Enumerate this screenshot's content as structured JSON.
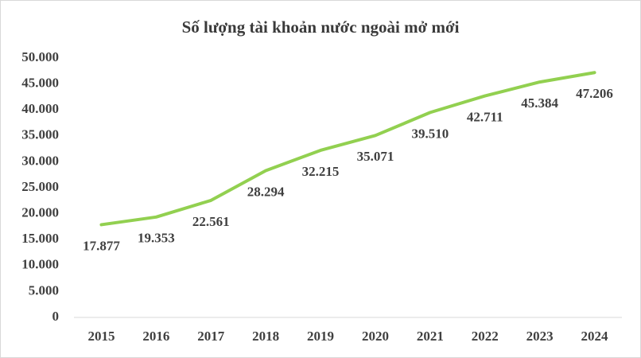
{
  "chart_data": {
    "type": "line",
    "title": "Số lượng tài khoản nước ngoài mở mới",
    "categories": [
      "2015",
      "2016",
      "2017",
      "2018",
      "2019",
      "2020",
      "2021",
      "2022",
      "2023",
      "2024"
    ],
    "series": [
      {
        "name": "Số lượng tài khoản nước ngoài mở mới",
        "color": "#92d050",
        "values": [
          17877,
          19353,
          22561,
          28294,
          32215,
          35071,
          39510,
          42711,
          45384,
          47206
        ],
        "value_labels": [
          "17.877",
          "19.353",
          "22.561",
          "28.294",
          "32.215",
          "35.071",
          "39.510",
          "42.711",
          "45.384",
          "47.206"
        ]
      }
    ],
    "ylim": [
      0,
      50000
    ],
    "yticks": [
      0,
      {
        "value": 5000,
        "label": "5.000"
      },
      {
        "value": 10000,
        "label": "10.000"
      },
      {
        "value": 15000,
        "label": "15.000"
      },
      {
        "value": 20000,
        "label": "20.000"
      },
      {
        "value": 25000,
        "label": "25.000"
      },
      {
        "value": 30000,
        "label": "30.000"
      },
      {
        "value": 35000,
        "label": "35.000"
      },
      {
        "value": 40000,
        "label": "40.000"
      },
      {
        "value": 45000,
        "label": "45.000"
      },
      {
        "value": 50000,
        "label": "50.000"
      }
    ],
    "grid": false
  }
}
